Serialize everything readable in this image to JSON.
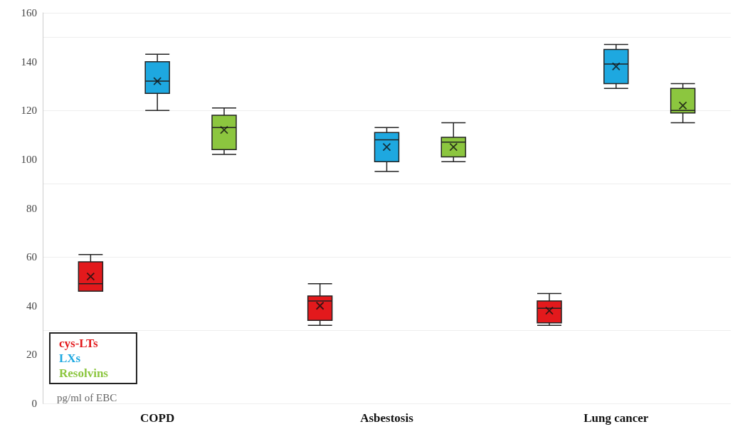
{
  "chart_data": {
    "type": "box",
    "categories": [
      "COPD",
      "Asbestosis",
      "Lung cancer"
    ],
    "ylabel": "pg/ml of EBC",
    "series": [
      {
        "name": "cys-LTs",
        "color": "#e3191c",
        "boxes": [
          {
            "low": 46,
            "q1": 46,
            "median": 49,
            "q3": 58,
            "high": 61,
            "mean": 52
          },
          {
            "low": 32,
            "q1": 34,
            "median": 42,
            "q3": 44,
            "high": 49,
            "mean": 40
          },
          {
            "low": 32,
            "q1": 33,
            "median": 39,
            "q3": 42,
            "high": 45,
            "mean": 38
          }
        ]
      },
      {
        "name": "LXs",
        "color": "#1ea8e0",
        "boxes": [
          {
            "low": 120,
            "q1": 127,
            "median": 132,
            "q3": 140,
            "high": 143,
            "mean": 132
          },
          {
            "low": 95,
            "q1": 99,
            "median": 108,
            "q3": 111,
            "high": 113,
            "mean": 105
          },
          {
            "low": 129,
            "q1": 131,
            "median": 139,
            "q3": 145,
            "high": 147,
            "mean": 138
          }
        ]
      },
      {
        "name": "Resolvins",
        "color": "#8cc63f",
        "boxes": [
          {
            "low": 102,
            "q1": 104,
            "median": 113,
            "q3": 118,
            "high": 121,
            "mean": 112
          },
          {
            "low": 99,
            "q1": 101,
            "median": 107,
            "q3": 109,
            "high": 115,
            "mean": 105
          },
          {
            "low": 115,
            "q1": 119,
            "median": 120,
            "q3": 129,
            "high": 131,
            "mean": 122
          }
        ]
      }
    ],
    "ylim": [
      0,
      160
    ],
    "yticks": [
      0,
      20,
      40,
      60,
      80,
      100,
      120,
      140,
      160
    ],
    "grid": "y",
    "legend": "bottom left"
  }
}
